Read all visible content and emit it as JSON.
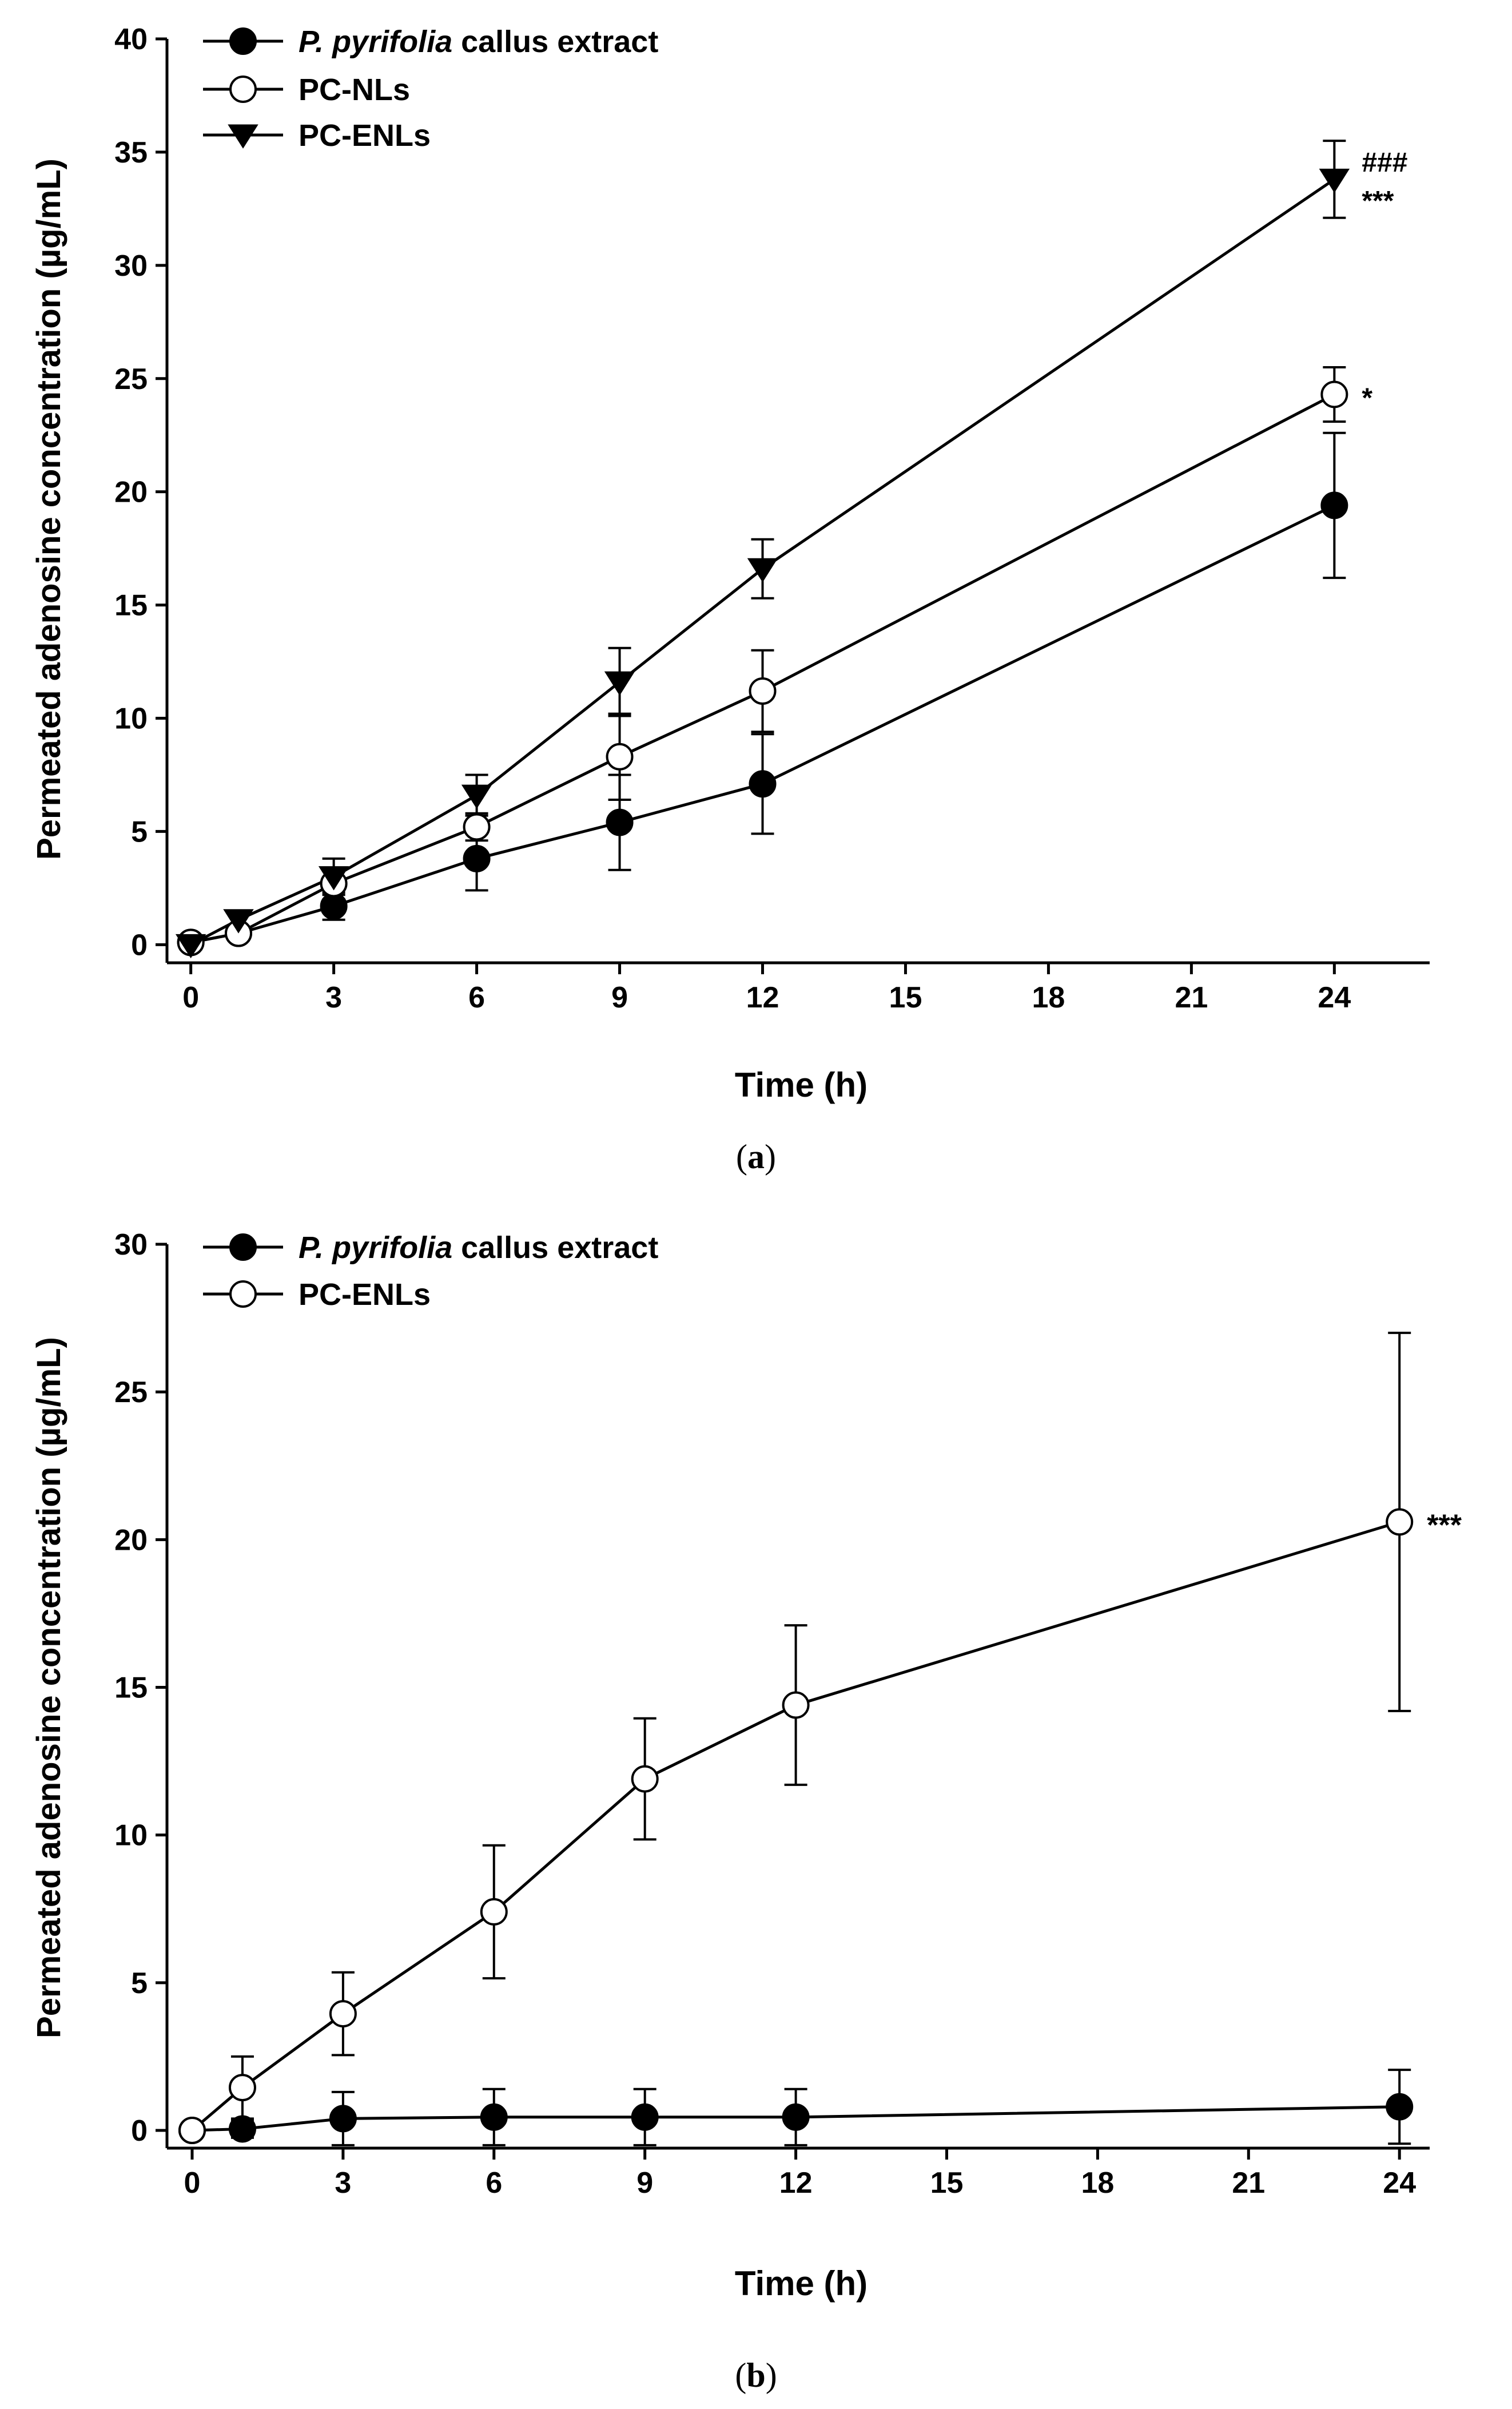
{
  "chart_data": [
    {
      "type": "line",
      "panel": "a",
      "caption_pre": "(",
      "caption_letter": "a",
      "caption_post": ")",
      "xlabel": "Time (h)",
      "ylabel": "Permeated adenosine concentration (µg/mL)",
      "xlim": [
        -0.5,
        26
      ],
      "ylim": [
        -0.8,
        40
      ],
      "xticks": [
        0,
        3,
        6,
        9,
        12,
        15,
        18,
        21,
        24
      ],
      "yticks": [
        0,
        5,
        10,
        15,
        20,
        25,
        30,
        35,
        40
      ],
      "legend_position": "top-left",
      "series": [
        {
          "name_italic": "P. pyrifolia",
          "name_rest": " callus extract",
          "marker": "circle-filled",
          "x": [
            0,
            1,
            3,
            6,
            9,
            12,
            24
          ],
          "y": [
            0.1,
            0.5,
            1.7,
            3.8,
            5.4,
            7.1,
            19.4
          ],
          "err": [
            0.2,
            0.2,
            0.6,
            1.4,
            2.1,
            2.2,
            3.2
          ]
        },
        {
          "name_italic": "",
          "name_rest": "PC-NLs",
          "marker": "circle-open",
          "x": [
            0,
            1,
            3,
            6,
            9,
            12,
            24
          ],
          "y": [
            0.1,
            0.5,
            2.7,
            5.2,
            8.3,
            11.2,
            24.3
          ],
          "err": [
            0.2,
            0.3,
            0.7,
            0.6,
            1.9,
            1.8,
            1.2
          ]
        },
        {
          "name_italic": "",
          "name_rest": "PC-ENLs",
          "marker": "triangle-down-filled",
          "x": [
            0,
            1,
            3,
            6,
            9,
            12,
            24
          ],
          "y": [
            0.0,
            1.1,
            3.0,
            6.6,
            11.6,
            16.6,
            33.8
          ],
          "err": [
            0.2,
            0.3,
            0.8,
            0.9,
            1.5,
            1.3,
            1.7
          ]
        }
      ],
      "annotations": [
        {
          "text": "###",
          "x": 24,
          "y": 34.6
        },
        {
          "text": "***",
          "x": 24,
          "y": 32.9
        },
        {
          "text": "*",
          "x": 24,
          "y": 24.2
        }
      ]
    },
    {
      "type": "line",
      "panel": "b",
      "caption_pre": "(",
      "caption_letter": "b",
      "caption_post": ")",
      "xlabel": "Time (h)",
      "ylabel": "Permeated adenosine concentration (µg/mL)",
      "xlim": [
        -0.5,
        24.6
      ],
      "ylim": [
        -0.6,
        30
      ],
      "xticks": [
        0,
        3,
        6,
        9,
        12,
        15,
        18,
        21,
        24
      ],
      "yticks": [
        0,
        5,
        10,
        15,
        20,
        25,
        30
      ],
      "legend_position": "top-left",
      "series": [
        {
          "name_italic": "P. pyrifolia",
          "name_rest": " callus extract",
          "marker": "circle-filled",
          "x": [
            0,
            1,
            3,
            6,
            9,
            12,
            24
          ],
          "y": [
            0.0,
            0.05,
            0.4,
            0.45,
            0.45,
            0.45,
            0.8
          ],
          "err": [
            0.1,
            0.3,
            0.9,
            0.95,
            0.95,
            0.95,
            1.25
          ]
        },
        {
          "name_italic": "",
          "name_rest": "PC-ENLs",
          "marker": "circle-open",
          "x": [
            0,
            1,
            3,
            6,
            9,
            12,
            24
          ],
          "y": [
            0.0,
            1.45,
            3.95,
            7.4,
            11.9,
            14.4,
            20.6
          ],
          "err": [
            0.1,
            1.05,
            1.4,
            2.25,
            2.05,
            2.7,
            6.4
          ]
        }
      ],
      "annotations": [
        {
          "text": "***",
          "x": 24,
          "y": 20.5
        }
      ]
    }
  ]
}
